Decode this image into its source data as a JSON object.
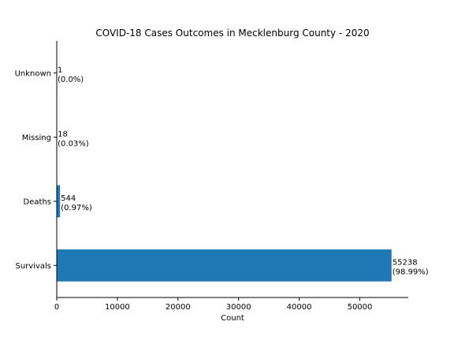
{
  "chart_data": {
    "type": "bar",
    "orientation": "horizontal",
    "title": "COVID-18 Cases Outcomes in Mecklenburg County - 2020",
    "xlabel": "Count",
    "ylabel": "",
    "categories": [
      "Survivals",
      "Deaths",
      "Missing",
      "Unknown"
    ],
    "values": [
      55238,
      544,
      18,
      1
    ],
    "data_labels": [
      {
        "count": "55238",
        "pct": "(98.99%)"
      },
      {
        "count": "544",
        "pct": "(0.97%)"
      },
      {
        "count": "18",
        "pct": "(0.03%)"
      },
      {
        "count": "1",
        "pct": "(0.0%)"
      }
    ],
    "xlim": [
      0,
      57999
    ],
    "xticks": [
      0,
      10000,
      20000,
      30000,
      40000,
      50000
    ],
    "xtick_labels": [
      "0",
      "10000",
      "20000",
      "30000",
      "40000",
      "50000"
    ],
    "bar_color": "#1f77b4",
    "grid": false,
    "legend": "none"
  }
}
